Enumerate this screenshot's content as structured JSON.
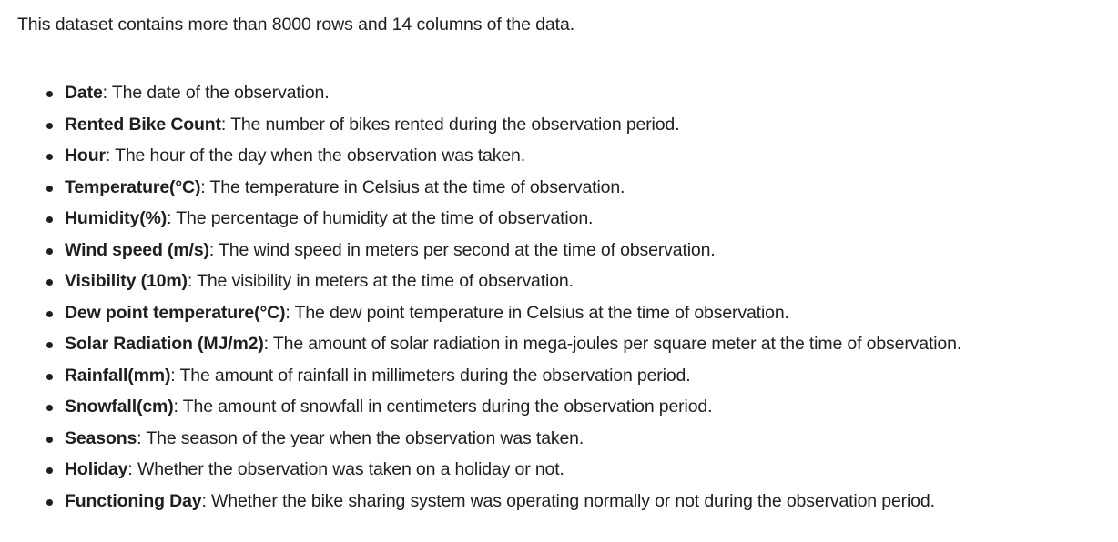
{
  "intro": "This dataset contains more than 8000 rows and 14 columns of the data.",
  "separator": ": ",
  "columns": [
    {
      "term": "Date",
      "description": "The date of the observation."
    },
    {
      "term": "Rented Bike Count",
      "description": "The number of bikes rented during the observation period."
    },
    {
      "term": "Hour",
      "description": "The hour of the day when the observation was taken."
    },
    {
      "term": "Temperature(°C)",
      "description": "The temperature in Celsius at the time of observation."
    },
    {
      "term": "Humidity(%)",
      "description": "The percentage of humidity at the time of observation."
    },
    {
      "term": "Wind speed (m/s)",
      "description": "The wind speed in meters per second at the time of observation."
    },
    {
      "term": "Visibility (10m)",
      "description": "The visibility in meters at the time of observation."
    },
    {
      "term": "Dew point temperature(°C)",
      "description": "The dew point temperature in Celsius at the time of observation."
    },
    {
      "term": "Solar Radiation (MJ/m2)",
      "description": "The amount of solar radiation in mega-joules per square meter at the time of observation."
    },
    {
      "term": "Rainfall(mm)",
      "description": "The amount of rainfall in millimeters during the observation period."
    },
    {
      "term": "Snowfall(cm)",
      "description": "The amount of snowfall in centimeters during the observation period."
    },
    {
      "term": "Seasons",
      "description": "The season of the year when the observation was taken."
    },
    {
      "term": "Holiday",
      "description": "Whether the observation was taken on a holiday or not."
    },
    {
      "term": "Functioning Day",
      "description": "Whether the bike sharing system was operating normally or not during the observation period."
    }
  ]
}
